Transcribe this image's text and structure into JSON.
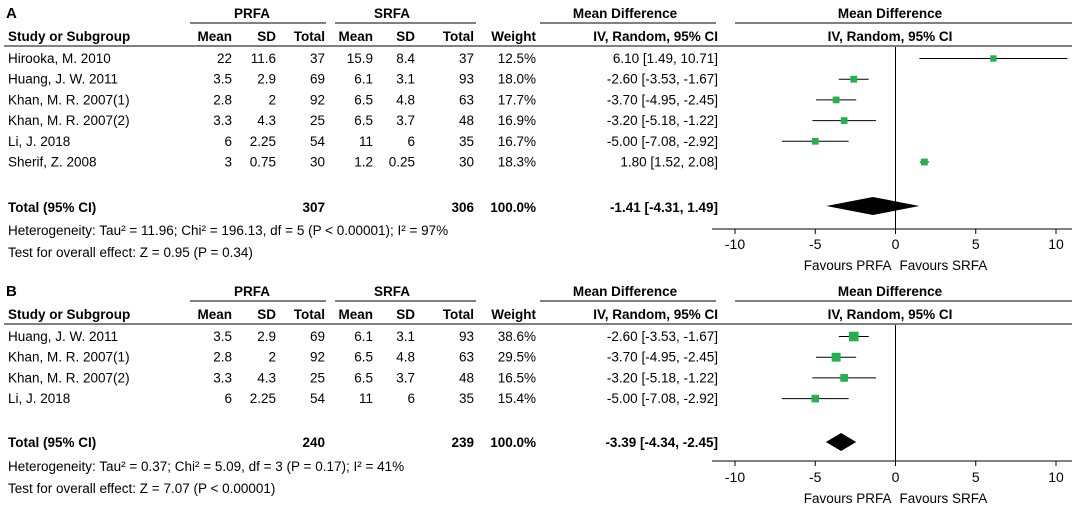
{
  "panels": [
    {
      "label": "A",
      "group1": "PRFA",
      "group2": "SRFA",
      "md_header": "Mean Difference",
      "md_plot_header": "Mean Difference",
      "subheader_ci": "IV, Random, 95% CI",
      "plot_subheader_ci": "IV, Random, 95% CI",
      "columns": [
        "Study or Subgroup",
        "Mean",
        "SD",
        "Total",
        "Mean",
        "SD",
        "Total",
        "Weight"
      ],
      "rows": [
        [
          "Hirooka, M. 2010",
          "22",
          "11.6",
          "37",
          "15.9",
          "8.4",
          "37",
          "12.5%",
          "6.10 [1.49, 10.71]"
        ],
        [
          "Huang, J. W. 2011",
          "3.5",
          "2.9",
          "69",
          "6.1",
          "3.1",
          "93",
          "18.0%",
          "-2.60 [-3.53, -1.67]"
        ],
        [
          "Khan, M. R. 2007(1)",
          "2.8",
          "2",
          "92",
          "6.5",
          "4.8",
          "63",
          "17.7%",
          "-3.70 [-4.95, -2.45]"
        ],
        [
          "Khan, M. R. 2007(2)",
          "3.3",
          "4.3",
          "25",
          "6.5",
          "3.7",
          "48",
          "16.9%",
          "-3.20 [-5.18, -1.22]"
        ],
        [
          "Li, J. 2018",
          "6",
          "2.25",
          "54",
          "11",
          "6",
          "35",
          "16.7%",
          "-5.00 [-7.08, -2.92]"
        ],
        [
          "Sherif, Z. 2008",
          "3",
          "0.75",
          "30",
          "1.2",
          "0.25",
          "30",
          "18.3%",
          "1.80 [1.52, 2.08]"
        ]
      ],
      "total": {
        "label": "Total (95% CI)",
        "n1": "307",
        "n2": "306",
        "weight": "100.0%",
        "ci": "-1.41 [-4.31, 1.49]"
      },
      "heterogeneity": "Heterogeneity: Tau² = 11.96; Chi² = 196.13, df = 5 (P < 0.00001); I² = 97%",
      "overall": "Test for overall effect: Z = 0.95 (P = 0.34)",
      "favours_left": "Favours PRFA",
      "favours_right": "Favours SRFA"
    },
    {
      "label": "B",
      "group1": "PRFA",
      "group2": "SRFA",
      "md_header": "Mean Difference",
      "md_plot_header": "Mean Difference",
      "subheader_ci": "IV, Random, 95% CI",
      "plot_subheader_ci": "IV, Random, 95% CI",
      "columns": [
        "Study or Subgroup",
        "Mean",
        "SD",
        "Total",
        "Mean",
        "SD",
        "Total",
        "Weight"
      ],
      "rows": [
        [
          "Huang, J. W. 2011",
          "3.5",
          "2.9",
          "69",
          "6.1",
          "3.1",
          "93",
          "38.6%",
          "-2.60 [-3.53, -1.67]"
        ],
        [
          "Khan, M. R. 2007(1)",
          "2.8",
          "2",
          "92",
          "6.5",
          "4.8",
          "63",
          "29.5%",
          "-3.70 [-4.95, -2.45]"
        ],
        [
          "Khan, M. R. 2007(2)",
          "3.3",
          "4.3",
          "25",
          "6.5",
          "3.7",
          "48",
          "16.5%",
          "-3.20 [-5.18, -1.22]"
        ],
        [
          "Li, J. 2018",
          "6",
          "2.25",
          "54",
          "11",
          "6",
          "35",
          "15.4%",
          "-5.00 [-7.08, -2.92]"
        ]
      ],
      "total": {
        "label": "Total (95% CI)",
        "n1": "240",
        "n2": "239",
        "weight": "100.0%",
        "ci": "-3.39 [-4.34, -2.45]"
      },
      "heterogeneity": "Heterogeneity: Tau² = 0.37; Chi² = 5.09, df = 3 (P = 0.17); I² = 41%",
      "overall": "Test for overall effect: Z = 7.07 (P < 0.00001)",
      "favours_left": "Favours PRFA",
      "favours_right": "Favours SRFA"
    }
  ],
  "chart_data": [
    {
      "type": "forest",
      "title": "A",
      "xlim": [
        -10,
        10
      ],
      "xticks": [
        -10,
        -5,
        0,
        5,
        10
      ],
      "marker_color": "#22b14c",
      "studies": [
        {
          "name": "Hirooka, M. 2010",
          "md": 6.1,
          "lo": 1.49,
          "hi": 10.71,
          "weight": 12.5
        },
        {
          "name": "Huang, J. W. 2011",
          "md": -2.6,
          "lo": -3.53,
          "hi": -1.67,
          "weight": 18.0
        },
        {
          "name": "Khan, M. R. 2007(1)",
          "md": -3.7,
          "lo": -4.95,
          "hi": -2.45,
          "weight": 17.7
        },
        {
          "name": "Khan, M. R. 2007(2)",
          "md": -3.2,
          "lo": -5.18,
          "hi": -1.22,
          "weight": 16.9
        },
        {
          "name": "Li, J. 2018",
          "md": -5.0,
          "lo": -7.08,
          "hi": -2.92,
          "weight": 16.7
        },
        {
          "name": "Sherif, Z. 2008",
          "md": 1.8,
          "lo": 1.52,
          "hi": 2.08,
          "weight": 18.3
        }
      ],
      "pooled": {
        "md": -1.41,
        "lo": -4.31,
        "hi": 1.49
      }
    },
    {
      "type": "forest",
      "title": "B",
      "xlim": [
        -10,
        10
      ],
      "xticks": [
        -10,
        -5,
        0,
        5,
        10
      ],
      "marker_color": "#22b14c",
      "studies": [
        {
          "name": "Huang, J. W. 2011",
          "md": -2.6,
          "lo": -3.53,
          "hi": -1.67,
          "weight": 38.6
        },
        {
          "name": "Khan, M. R. 2007(1)",
          "md": -3.7,
          "lo": -4.95,
          "hi": -2.45,
          "weight": 29.5
        },
        {
          "name": "Khan, M. R. 2007(2)",
          "md": -3.2,
          "lo": -5.18,
          "hi": -1.22,
          "weight": 16.5
        },
        {
          "name": "Li, J. 2018",
          "md": -5.0,
          "lo": -7.08,
          "hi": -2.92,
          "weight": 15.4
        }
      ],
      "pooled": {
        "md": -3.39,
        "lo": -4.34,
        "hi": -2.45
      }
    }
  ]
}
